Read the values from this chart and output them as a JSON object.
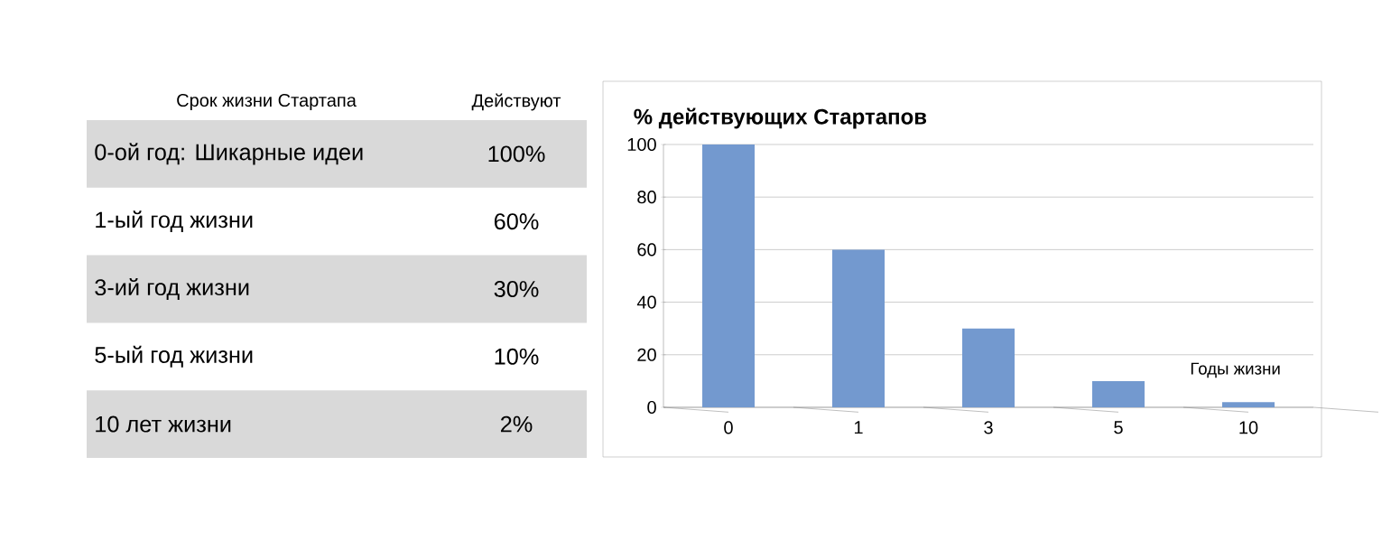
{
  "chart_data": [
    {
      "type": "other",
      "annotations": [
        "Срок жизни Стартапа",
        "Действуют"
      ],
      "categories": [
        "0-ой год: Шикарные идеи",
        "1-ый год жизни",
        "3-ий год жизни",
        "5-ый год жизни",
        "10 лет жизни"
      ],
      "value_labels": [
        "100%",
        "60%",
        "30%",
        "10%",
        "2%"
      ],
      "color": "#d9d9d9"
    },
    {
      "type": "bar",
      "title": "% действующих Стартапов",
      "xlabel": "Годы жизни",
      "categories": [
        "0",
        "1",
        "3",
        "5",
        "10"
      ],
      "values": [
        100,
        60,
        30,
        10,
        2
      ],
      "color": "#7399cf",
      "ylim": [
        0,
        100
      ],
      "yticks": [
        0,
        20,
        40,
        60,
        80,
        100
      ],
      "grid": "y"
    }
  ]
}
